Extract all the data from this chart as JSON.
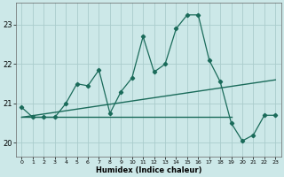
{
  "xlabel": "Humidex (Indice chaleur)",
  "bg_color": "#cce8e8",
  "grid_color": "#aacccc",
  "line_color": "#1a6b5a",
  "xlim": [
    -0.5,
    23.5
  ],
  "ylim": [
    19.65,
    23.55
  ],
  "yticks": [
    20,
    21,
    22,
    23
  ],
  "xticks": [
    0,
    1,
    2,
    3,
    4,
    5,
    6,
    7,
    8,
    9,
    10,
    11,
    12,
    13,
    14,
    15,
    16,
    17,
    18,
    19,
    20,
    21,
    22,
    23
  ],
  "main_line_x": [
    0,
    1,
    2,
    3,
    4,
    5,
    6,
    7,
    8,
    9,
    10,
    11,
    12,
    13,
    14,
    15,
    16,
    17,
    18,
    19,
    20,
    21,
    22,
    23
  ],
  "main_line_y": [
    20.9,
    20.65,
    20.65,
    20.65,
    21.0,
    21.5,
    21.45,
    21.85,
    20.75,
    21.3,
    21.65,
    22.7,
    21.8,
    22.0,
    22.9,
    23.25,
    23.25,
    22.1,
    21.55,
    20.5,
    20.05,
    20.2,
    20.7,
    20.7
  ],
  "diag_line_x": [
    0,
    23
  ],
  "diag_line_y": [
    20.65,
    21.6
  ],
  "flat_line_x": [
    0,
    19
  ],
  "flat_line_y": [
    20.65,
    20.65
  ]
}
